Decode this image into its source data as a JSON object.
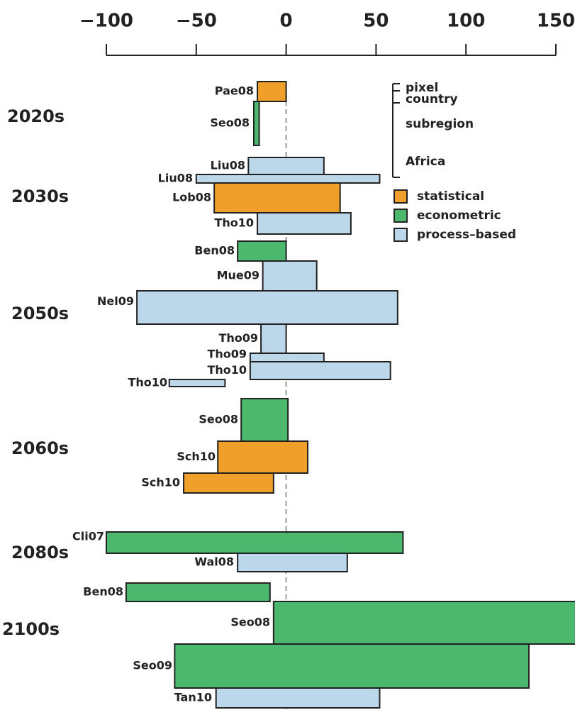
{
  "chart_data": {
    "type": "range_bar",
    "xlim": [
      -100,
      150
    ],
    "xticks": [
      {
        "value": -100,
        "label": "−100"
      },
      {
        "value": -50,
        "label": "−50"
      },
      0,
      50,
      100,
      150
    ],
    "series": [
      {
        "name": "statistical",
        "color": "#f0a02a"
      },
      {
        "name": "econometric",
        "color": "#4cb86e"
      },
      {
        "name": "process–based",
        "color": "#bcd6ea"
      }
    ],
    "scale_legend": [
      "pixel",
      "country",
      "subregion",
      "Africa"
    ],
    "groups": [
      "2020s",
      "2030s",
      "2050s",
      "2060s",
      "2080s",
      "2100s"
    ],
    "bars": [
      {
        "label": "Pae08",
        "low": -16,
        "high": 0,
        "series": 0
      },
      {
        "label": "Seo08",
        "low": -18,
        "high": -15,
        "series": 1
      },
      {
        "label": "Liu08",
        "low": -21,
        "high": 21,
        "series": 2
      },
      {
        "label": "Liu08",
        "low": -50,
        "high": 52,
        "series": 2
      },
      {
        "label": "Lob08",
        "low": -40,
        "high": 30,
        "series": 0
      },
      {
        "label": "Tho10",
        "low": -16,
        "high": 36,
        "series": 2
      },
      {
        "label": "Ben08",
        "low": -27,
        "high": 0,
        "series": 1
      },
      {
        "label": "Mue09",
        "low": -13,
        "high": 17,
        "series": 2
      },
      {
        "label": "Nel09",
        "low": -83,
        "high": 62,
        "series": 2
      },
      {
        "label": "Tho09",
        "low": -14,
        "high": 0,
        "series": 2
      },
      {
        "label": "Tho09",
        "low": -20,
        "high": 21,
        "series": 2
      },
      {
        "label": "Tho10",
        "low": -20,
        "high": 58,
        "series": 2
      },
      {
        "label": "Tho10",
        "low": -65,
        "high": -34,
        "series": 2
      },
      {
        "label": "Seo08",
        "low": -25,
        "high": 1,
        "series": 1
      },
      {
        "label": "Sch10",
        "low": -38,
        "high": 12,
        "series": 0
      },
      {
        "label": "Sch10",
        "low": -57,
        "high": -7,
        "series": 0
      },
      {
        "label": "Cli07",
        "low": -100,
        "high": 65,
        "series": 1
      },
      {
        "label": "Wal08",
        "low": -27,
        "high": 34,
        "series": 2
      },
      {
        "label": "Ben08",
        "low": -89,
        "high": -9,
        "series": 1
      },
      {
        "label": "Seo08",
        "low": -7,
        "high": 161,
        "series": 1
      },
      {
        "label": "Seo09",
        "low": -62,
        "high": 135,
        "series": 1
      },
      {
        "label": "Tan10",
        "low": -39,
        "high": 52,
        "series": 2
      }
    ]
  }
}
